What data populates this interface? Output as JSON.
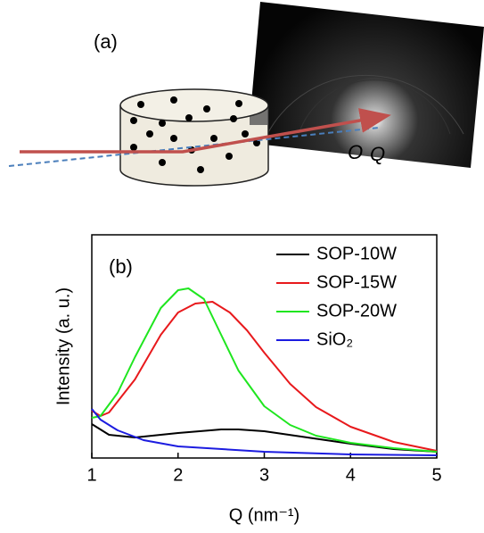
{
  "panel_a": {
    "label": "(a)",
    "origin_label": "O",
    "q_label": "Q"
  },
  "chart_data": {
    "type": "line",
    "label": "(b)",
    "xlabel": "Q (nm⁻¹)",
    "ylabel": "Intensity (a. u.)",
    "xlim": [
      1,
      5
    ],
    "xticks": [
      1,
      2,
      3,
      4,
      5
    ],
    "ylim": [
      0,
      10
    ],
    "legend": "upper right",
    "series": [
      {
        "name": "SOP-10W",
        "color": "#000000",
        "x": [
          1.0,
          1.2,
          1.5,
          2.0,
          2.5,
          2.7,
          3.0,
          3.5,
          4.0,
          4.5,
          5.0
        ],
        "values": [
          1.52,
          1.04,
          0.92,
          1.12,
          1.28,
          1.28,
          1.2,
          0.92,
          0.64,
          0.4,
          0.28
        ]
      },
      {
        "name": "SOP-15W",
        "color": "#e8191c",
        "x": [
          1.0,
          1.1,
          1.2,
          1.5,
          1.8,
          2.0,
          2.2,
          2.4,
          2.6,
          2.8,
          3.0,
          3.3,
          3.6,
          4.0,
          4.5,
          5.0
        ],
        "values": [
          2.12,
          1.88,
          2.04,
          3.52,
          5.52,
          6.52,
          6.92,
          7.0,
          6.52,
          5.72,
          4.72,
          3.32,
          2.28,
          1.4,
          0.72,
          0.32
        ]
      },
      {
        "name": "SOP-20W",
        "color": "#1fe61f",
        "x": [
          1.0,
          1.1,
          1.3,
          1.5,
          1.8,
          2.0,
          2.12,
          2.3,
          2.5,
          2.7,
          3.0,
          3.3,
          3.6,
          4.0,
          4.5,
          5.0
        ],
        "values": [
          1.8,
          1.88,
          2.92,
          4.52,
          6.72,
          7.52,
          7.6,
          7.12,
          5.52,
          3.92,
          2.32,
          1.48,
          1.0,
          0.68,
          0.44,
          0.28
        ]
      },
      {
        "name": "SiO₂",
        "color": "#1c1ce0",
        "x": [
          1.0,
          1.1,
          1.3,
          1.6,
          2.0,
          3.0,
          4.0,
          5.0
        ],
        "values": [
          2.2,
          1.72,
          1.24,
          0.8,
          0.52,
          0.28,
          0.16,
          0.12
        ]
      }
    ]
  }
}
